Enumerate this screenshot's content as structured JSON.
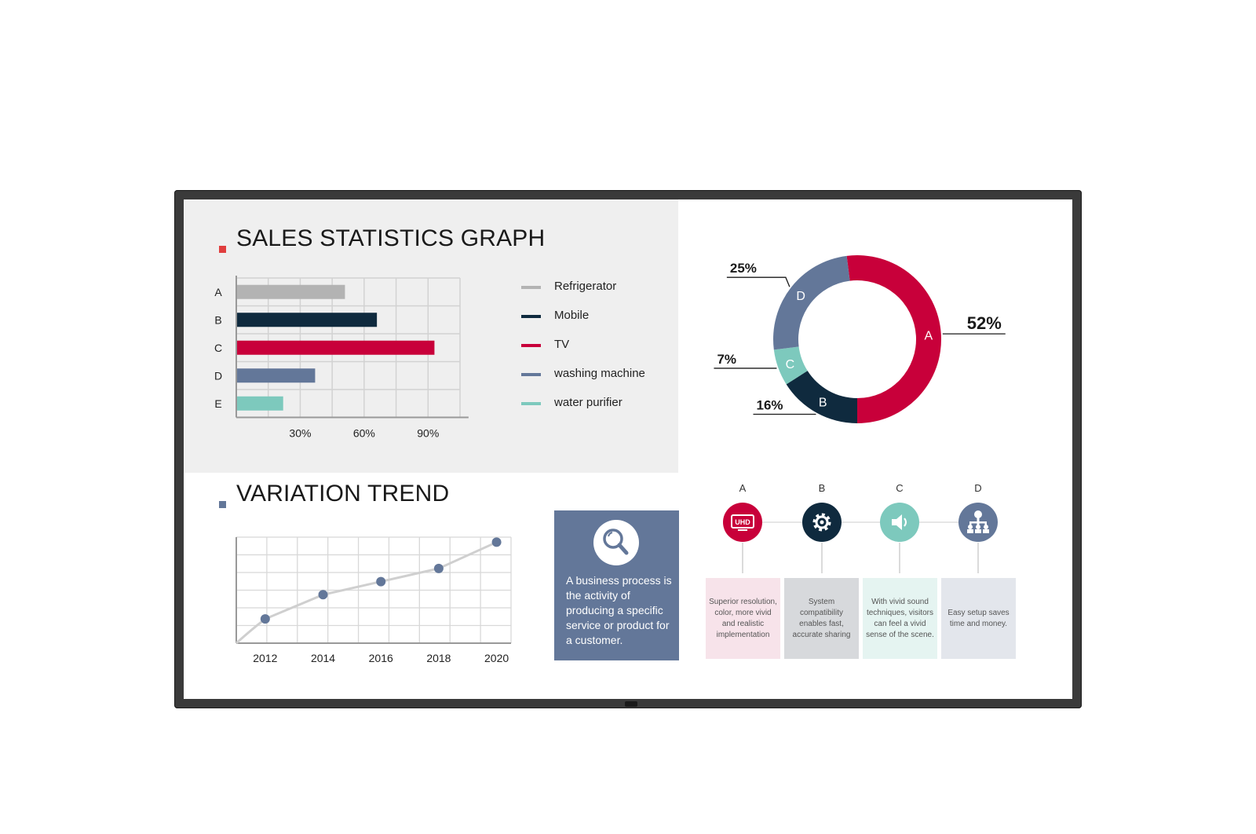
{
  "colors": {
    "refrigerator": "#b3b3b3",
    "mobile": "#0f2a3e",
    "tv": "#c8003a",
    "washing": "#637799",
    "purifier": "#7dc9bd",
    "gray_panel": "#efefef",
    "sales_mark": "#e03e3e",
    "trend_mark": "#637799"
  },
  "sales": {
    "title": "SALES STATISTICS GRAPH"
  },
  "trend": {
    "title": "VARIATION TREND"
  },
  "info": {
    "icon": "magnifier-icon",
    "text": "A business process is the activity of producing a specific service or product for a customer."
  },
  "features": [
    {
      "letter": "A",
      "icon": "uhd-icon",
      "icon_text": "UHD",
      "color": "#c8003a",
      "card_color": "#f7e3ea",
      "text": "Superior resolution, color, more vivid and realistic implementation"
    },
    {
      "letter": "B",
      "icon": "gear-icon",
      "color": "#0f2a3e",
      "card_color": "#d7d9dc",
      "text": "System compatibility enables fast, accurate sharing"
    },
    {
      "letter": "C",
      "icon": "speaker-icon",
      "color": "#7dc9bd",
      "card_color": "#e5f4f1",
      "text": "With vivid sound techniques, visitors can feel a vivid sense of the scene."
    },
    {
      "letter": "D",
      "icon": "network-icon",
      "color": "#637799",
      "card_color": "#e3e6ec",
      "text": "Easy setup saves time and money."
    }
  ],
  "chart_data": [
    {
      "type": "bar",
      "orientation": "horizontal",
      "categories": [
        "A",
        "B",
        "C",
        "D",
        "E"
      ],
      "values": [
        51,
        66,
        93,
        37,
        22
      ],
      "series_colors": [
        "#b3b3b3",
        "#0f2a3e",
        "#c8003a",
        "#637799",
        "#7dc9bd"
      ],
      "xticks": [
        30,
        60,
        90
      ],
      "xtick_labels": [
        "30%",
        "60%",
        "90%"
      ],
      "xlim": [
        0,
        105
      ],
      "grid": true,
      "legend": {
        "position": "right",
        "entries": [
          "Refrigerator",
          "Mobile",
          "TV",
          "washing machine",
          "water purifier"
        ]
      }
    },
    {
      "type": "pie",
      "donut": true,
      "labels": [
        "A",
        "B",
        "C",
        "D"
      ],
      "values": [
        52,
        16,
        7,
        25
      ],
      "value_labels": [
        "52%",
        "16%",
        "7%",
        "25%"
      ],
      "colors": [
        "#c8003a",
        "#0f2a3e",
        "#7dc9bd",
        "#637799"
      ]
    },
    {
      "type": "line",
      "x": [
        "2012",
        "2014",
        "2016",
        "2018",
        "2020"
      ],
      "values": [
        24,
        48,
        61,
        74,
        100
      ],
      "start": {
        "x": "2011",
        "y": 0
      },
      "ylim": [
        0,
        105
      ],
      "grid": true,
      "line_color": "#cfcfcf",
      "marker_color": "#637799"
    }
  ]
}
